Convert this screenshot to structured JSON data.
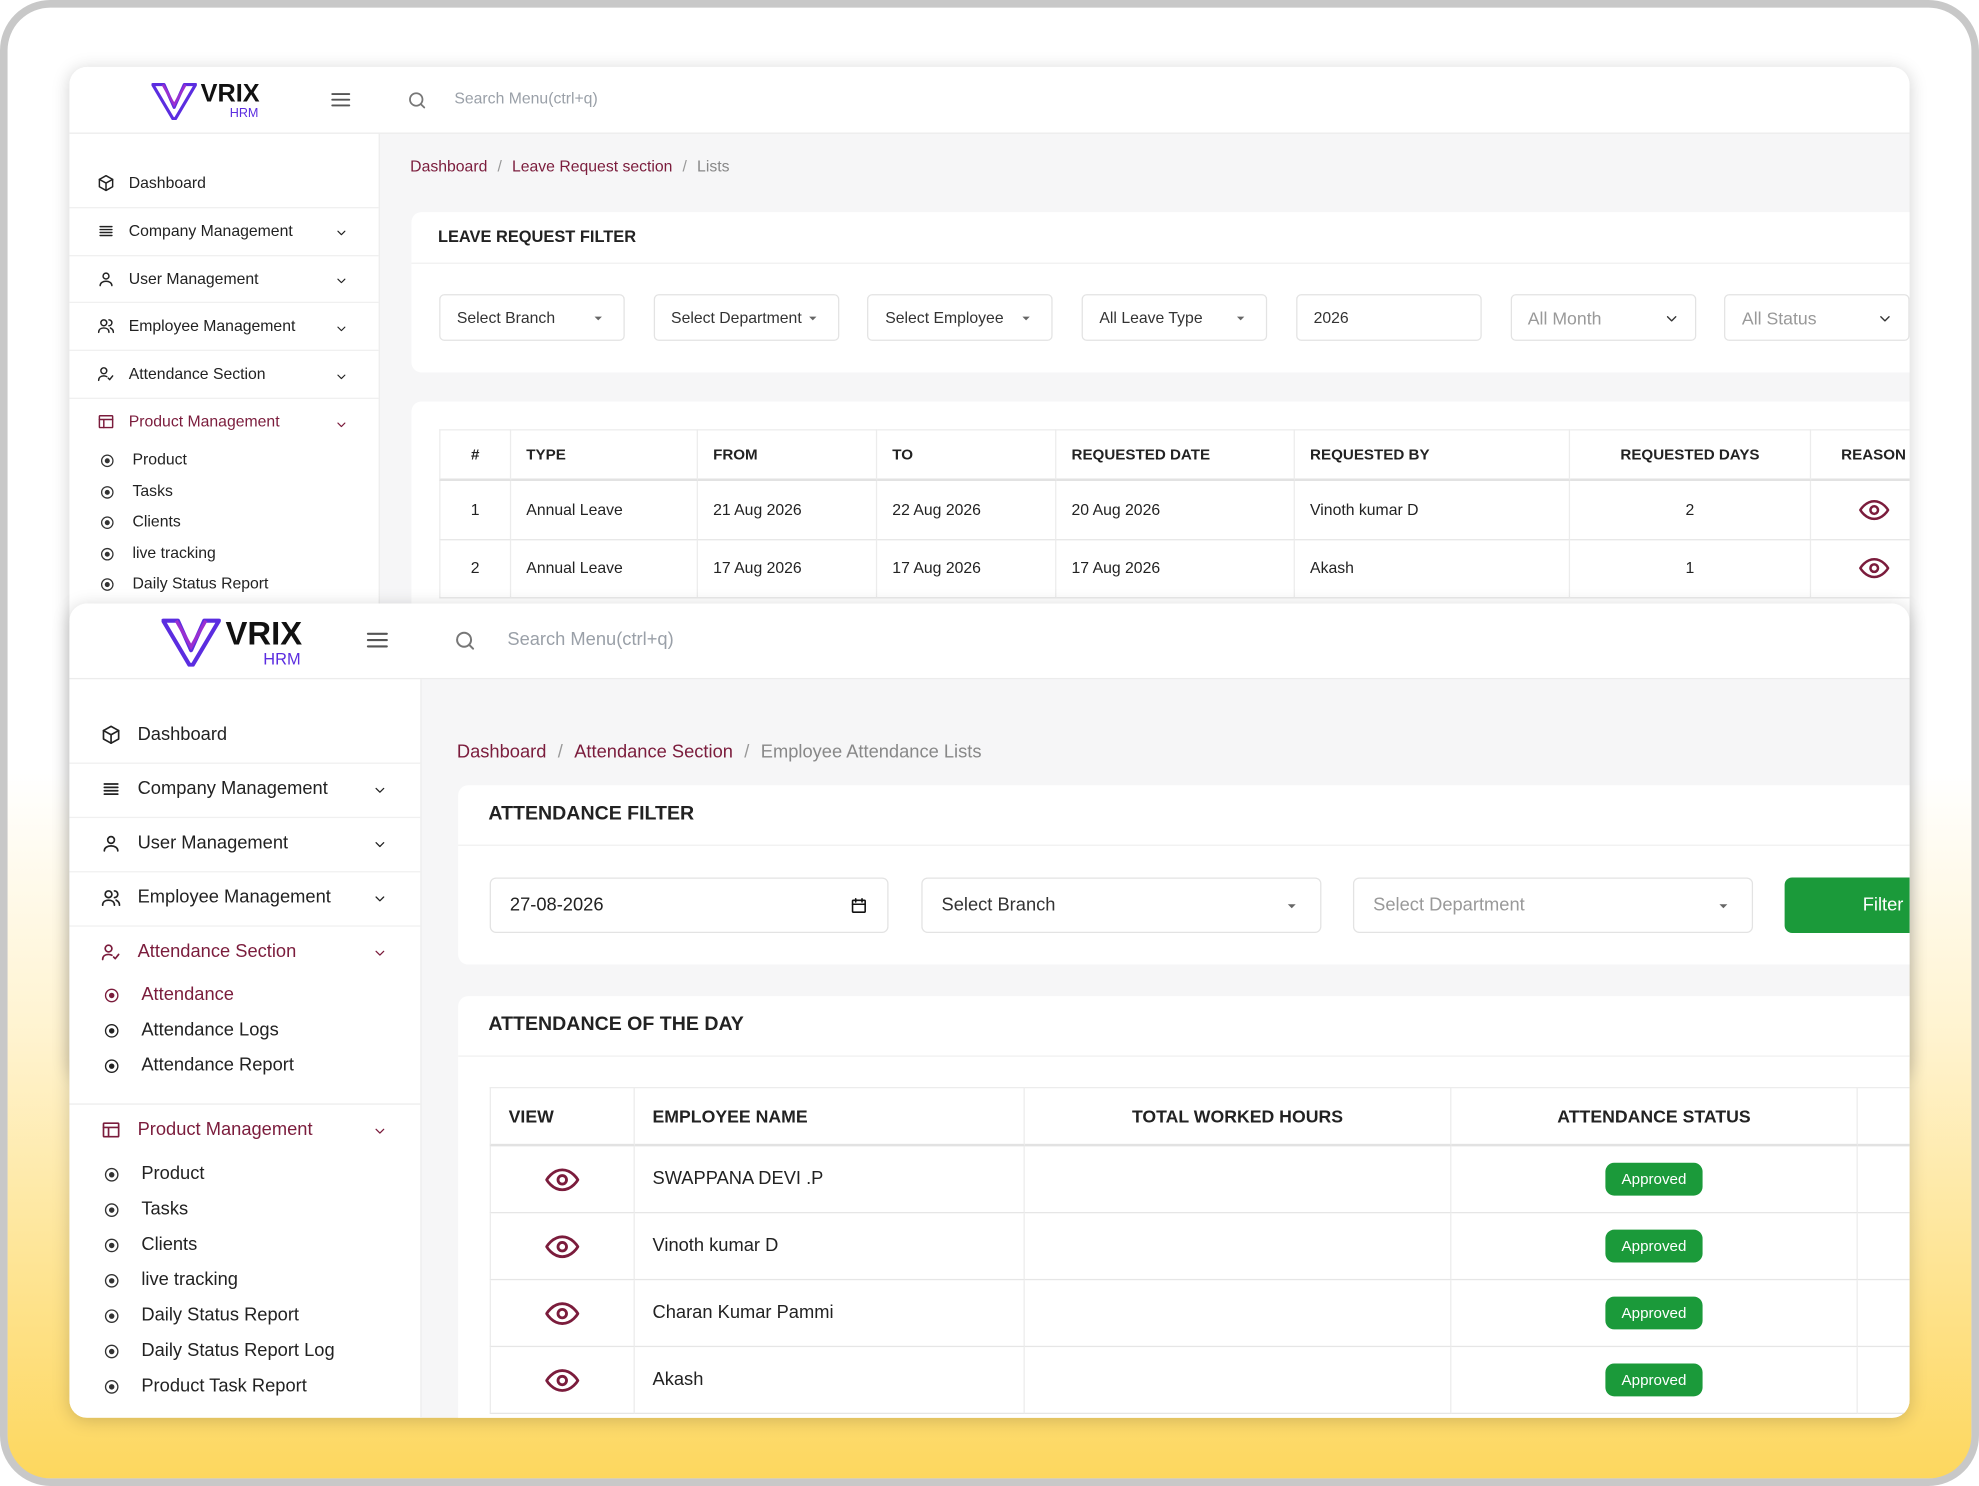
{
  "leave_window": {
    "logo": {
      "name": "VRIX",
      "sub": "HRM"
    },
    "search_placeholder": "Search Menu(ctrl+q)",
    "menu": [
      "Dashboard",
      "Company Management",
      "User Management",
      "Employee Management",
      "Attendance Section",
      "Product Management"
    ],
    "submenu": [
      "Product",
      "Tasks",
      "Clients",
      "live tracking",
      "Daily Status Report"
    ],
    "breadcrumb": [
      "Dashboard",
      "Leave Request section",
      "Lists"
    ],
    "filter_title": "LEAVE REQUEST FILTER",
    "filters": [
      "Select Branch",
      "Select Department",
      "Select Employee",
      "All Leave Type",
      "2026",
      "All Month",
      "All Status"
    ],
    "table": {
      "headers": [
        "#",
        "TYPE",
        "FROM",
        "TO",
        "REQUESTED DATE",
        "REQUESTED BY",
        "REQUESTED DAYS",
        "REASON"
      ],
      "rows": [
        [
          1,
          "Annual Leave",
          "21 Aug 2026",
          "22 Aug 2026",
          "20 Aug 2026",
          "Vinoth kumar D",
          2
        ],
        [
          2,
          "Annual Leave",
          "17 Aug 2026",
          "17 Aug 2026",
          "17 Aug 2026",
          "Akash",
          1
        ]
      ]
    }
  },
  "attendance_window": {
    "logo": {
      "name": "VRIX",
      "sub": "HRM"
    },
    "search_placeholder": "Search Menu(ctrl+q)",
    "menu": [
      "Dashboard",
      "Company Management",
      "User Management",
      "Employee Management",
      "Attendance Section"
    ],
    "attendance_submenu": [
      "Attendance",
      "Attendance Logs",
      "Attendance Report"
    ],
    "product_menu": "Product Management",
    "product_submenu": [
      "Product",
      "Tasks",
      "Clients",
      "live tracking",
      "Daily Status Report",
      "Daily Status Report Log",
      "Product Task Report"
    ],
    "breadcrumb": [
      "Dashboard",
      "Attendance Section",
      "Employee Attendance Lists"
    ],
    "filter_title": "ATTENDANCE FILTER",
    "date": "27-08-2026",
    "filters": [
      "Select Branch",
      "Select Department"
    ],
    "filter_button": "Filter",
    "table_title": "ATTENDANCE OF THE DAY",
    "table": {
      "headers": [
        "VIEW",
        "EMPLOYEE NAME",
        "TOTAL WORKED HOURS",
        "ATTENDANCE STATUS"
      ],
      "rows": [
        {
          "employee": "SWAPPANA DEVI .P",
          "status": "Approved"
        },
        {
          "employee": "Vinoth kumar D",
          "status": "Approved"
        },
        {
          "employee": "Charan Kumar Pammi",
          "status": "Approved"
        },
        {
          "employee": "Akash",
          "status": "Approved"
        }
      ]
    }
  }
}
